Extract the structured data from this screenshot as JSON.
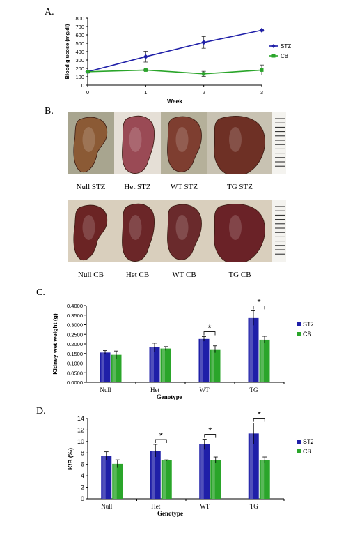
{
  "panels": {
    "a": {
      "label": "A."
    },
    "b": {
      "label": "B."
    },
    "c": {
      "label": "C."
    },
    "d": {
      "label": "D."
    }
  },
  "colors": {
    "stz": "#1f1fa8",
    "cb": "#2aa52a"
  },
  "panel_b": {
    "stz_captions": [
      "Null STZ",
      "Het STZ",
      "WT STZ",
      "TG STZ"
    ],
    "cb_captions": [
      "Null CB",
      "Het CB",
      "WT CB",
      "TG CB"
    ],
    "kidney_colors_stz": [
      "#8b5a35",
      "#9a4a55",
      "#7e3e30",
      "#6e3025"
    ],
    "kidney_colors_cb": [
      "#6b2424",
      "#6b2628",
      "#6a2a2c",
      "#6a2227"
    ],
    "bg_colors_stz": [
      "#a8a58f",
      "#e5dfd6",
      "#b5b09a",
      "#c8c2b2"
    ],
    "bg_colors_cb": [
      "#d9cfbd",
      "#d9cfbd",
      "#d9cfbd",
      "#d9cfbd"
    ]
  },
  "chart_data": [
    {
      "type": "line",
      "x": [
        0,
        1,
        2,
        3
      ],
      "xlabel": "Week",
      "ylabel": "Blood glucose (mg/dl)",
      "ylim": [
        0,
        800
      ],
      "yticks": [
        "0",
        "100",
        "200",
        "300",
        "400",
        "500",
        "600",
        "700",
        "800"
      ],
      "xticks": [
        "0",
        "1",
        "2",
        "3"
      ],
      "legend_position": "right",
      "series": [
        {
          "name": "STZ",
          "values": [
            160,
            340,
            510,
            655
          ],
          "errors": [
            10,
            65,
            70,
            12
          ]
        },
        {
          "name": "CB",
          "values": [
            160,
            180,
            135,
            180
          ],
          "errors": [
            8,
            10,
            30,
            60
          ]
        }
      ]
    },
    {
      "type": "bar",
      "categories": [
        "Null",
        "Het",
        "WT",
        "TG"
      ],
      "xlabel": "Genotype",
      "ylabel": "Kidney wet weight (g)",
      "ylim": [
        0,
        0.4
      ],
      "yticks": [
        "0.0000",
        "0.0500",
        "0.1000",
        "0.1500",
        "0.2000",
        "0.2500",
        "0.3000",
        "0.3500",
        "0.4000"
      ],
      "legend_position": "right",
      "series": [
        {
          "name": "STZ",
          "values": [
            0.155,
            0.182,
            0.226,
            0.335
          ],
          "errors": [
            0.01,
            0.022,
            0.012,
            0.038
          ]
        },
        {
          "name": "CB",
          "values": [
            0.143,
            0.176,
            0.172,
            0.222
          ],
          "errors": [
            0.02,
            0.01,
            0.018,
            0.018
          ]
        }
      ],
      "significance": [
        false,
        false,
        true,
        true
      ],
      "star": "*"
    },
    {
      "type": "bar",
      "categories": [
        "Null",
        "Het",
        "WT",
        "TG"
      ],
      "xlabel": "Genotype",
      "ylabel": "K/B (‰)",
      "ylim": [
        0,
        14
      ],
      "yticks": [
        "0",
        "2",
        "4",
        "6",
        "8",
        "10",
        "12",
        "14"
      ],
      "legend_position": "right",
      "series": [
        {
          "name": "STZ",
          "values": [
            7.5,
            8.4,
            9.5,
            11.4
          ],
          "errors": [
            0.7,
            1.1,
            0.9,
            1.8
          ]
        },
        {
          "name": "CB",
          "values": [
            6.1,
            6.7,
            6.8,
            6.8
          ],
          "errors": [
            0.7,
            0.1,
            0.5,
            0.5
          ]
        }
      ],
      "significance": [
        false,
        true,
        true,
        true
      ],
      "star": "*"
    }
  ]
}
